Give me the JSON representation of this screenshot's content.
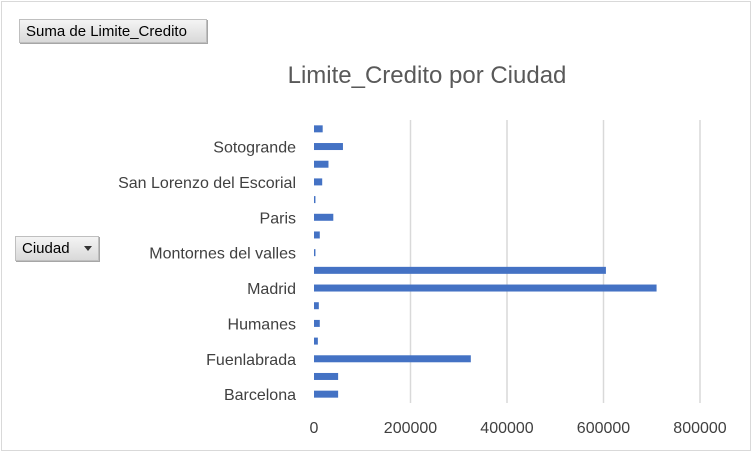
{
  "value_field": {
    "label": "Suma de Limite_Credito"
  },
  "axis_field": {
    "label": "Ciudad",
    "icon": "dropdown-icon"
  },
  "chart_data": {
    "type": "bar",
    "orientation": "horizontal",
    "title": "Limite_Credito por Ciudad",
    "xlabel": "",
    "ylabel": "",
    "xlim": [
      0,
      800000
    ],
    "x_ticks": [
      0,
      200000,
      400000,
      600000,
      800000
    ],
    "grid": true,
    "bar_color": "#4472c4",
    "categories": [
      "Barcelona",
      "",
      "Fuenlabrada",
      "",
      "Humanes",
      "",
      "Madrid",
      "",
      "Montornes del valles",
      "",
      "Paris",
      "",
      "San Lorenzo del Escorial",
      "",
      "Sotogrande",
      ""
    ],
    "values": [
      50000,
      50000,
      325000,
      8000,
      12000,
      10000,
      710000,
      605000,
      3000,
      12000,
      40000,
      3000,
      17000,
      30000,
      60000,
      18000
    ]
  }
}
